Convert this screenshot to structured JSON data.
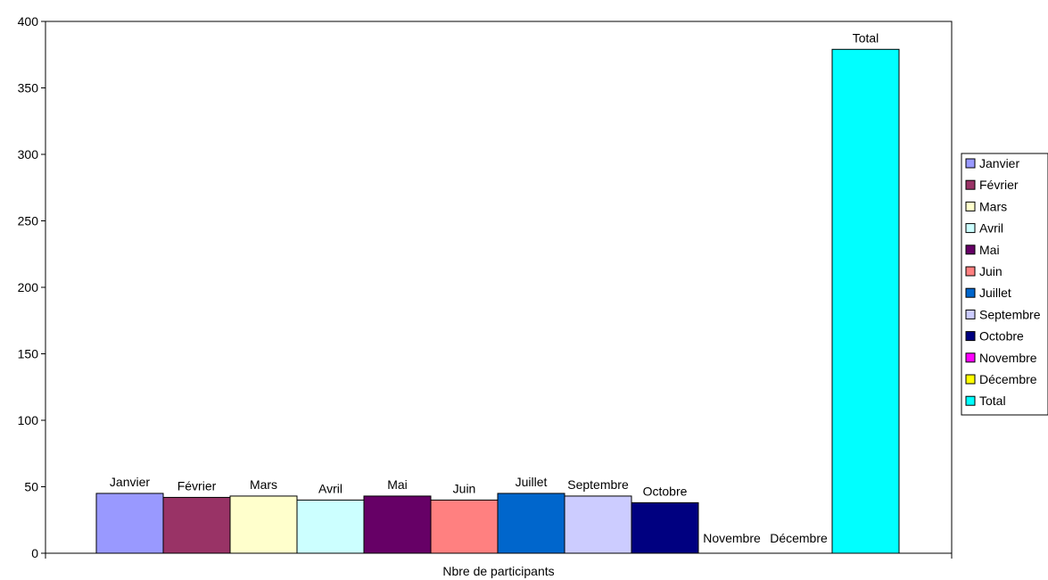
{
  "chart_data": {
    "type": "bar",
    "xlabel": "Nbre de participants",
    "ylabel": "",
    "ylim": [
      0,
      400
    ],
    "yticks": [
      0,
      50,
      100,
      150,
      200,
      250,
      300,
      350,
      400
    ],
    "grid": false,
    "legend_position": "right",
    "series": [
      {
        "name": "Janvier",
        "value": 45,
        "color": "#9999ff"
      },
      {
        "name": "Février",
        "value": 42,
        "color": "#993366"
      },
      {
        "name": "Mars",
        "value": 43,
        "color": "#ffffcc"
      },
      {
        "name": "Avril",
        "value": 40,
        "color": "#ccffff"
      },
      {
        "name": "Mai",
        "value": 43,
        "color": "#660066"
      },
      {
        "name": "Juin",
        "value": 40,
        "color": "#ff8080"
      },
      {
        "name": "Juillet",
        "value": 45,
        "color": "#0066cc"
      },
      {
        "name": "Septembre",
        "value": 43,
        "color": "#ccccff"
      },
      {
        "name": "Octobre",
        "value": 38,
        "color": "#000080"
      },
      {
        "name": "Novembre",
        "value": 0,
        "color": "#ff00ff"
      },
      {
        "name": "Décembre",
        "value": 0,
        "color": "#ffff00"
      },
      {
        "name": "Total",
        "value": 379,
        "color": "#00ffff"
      }
    ]
  }
}
